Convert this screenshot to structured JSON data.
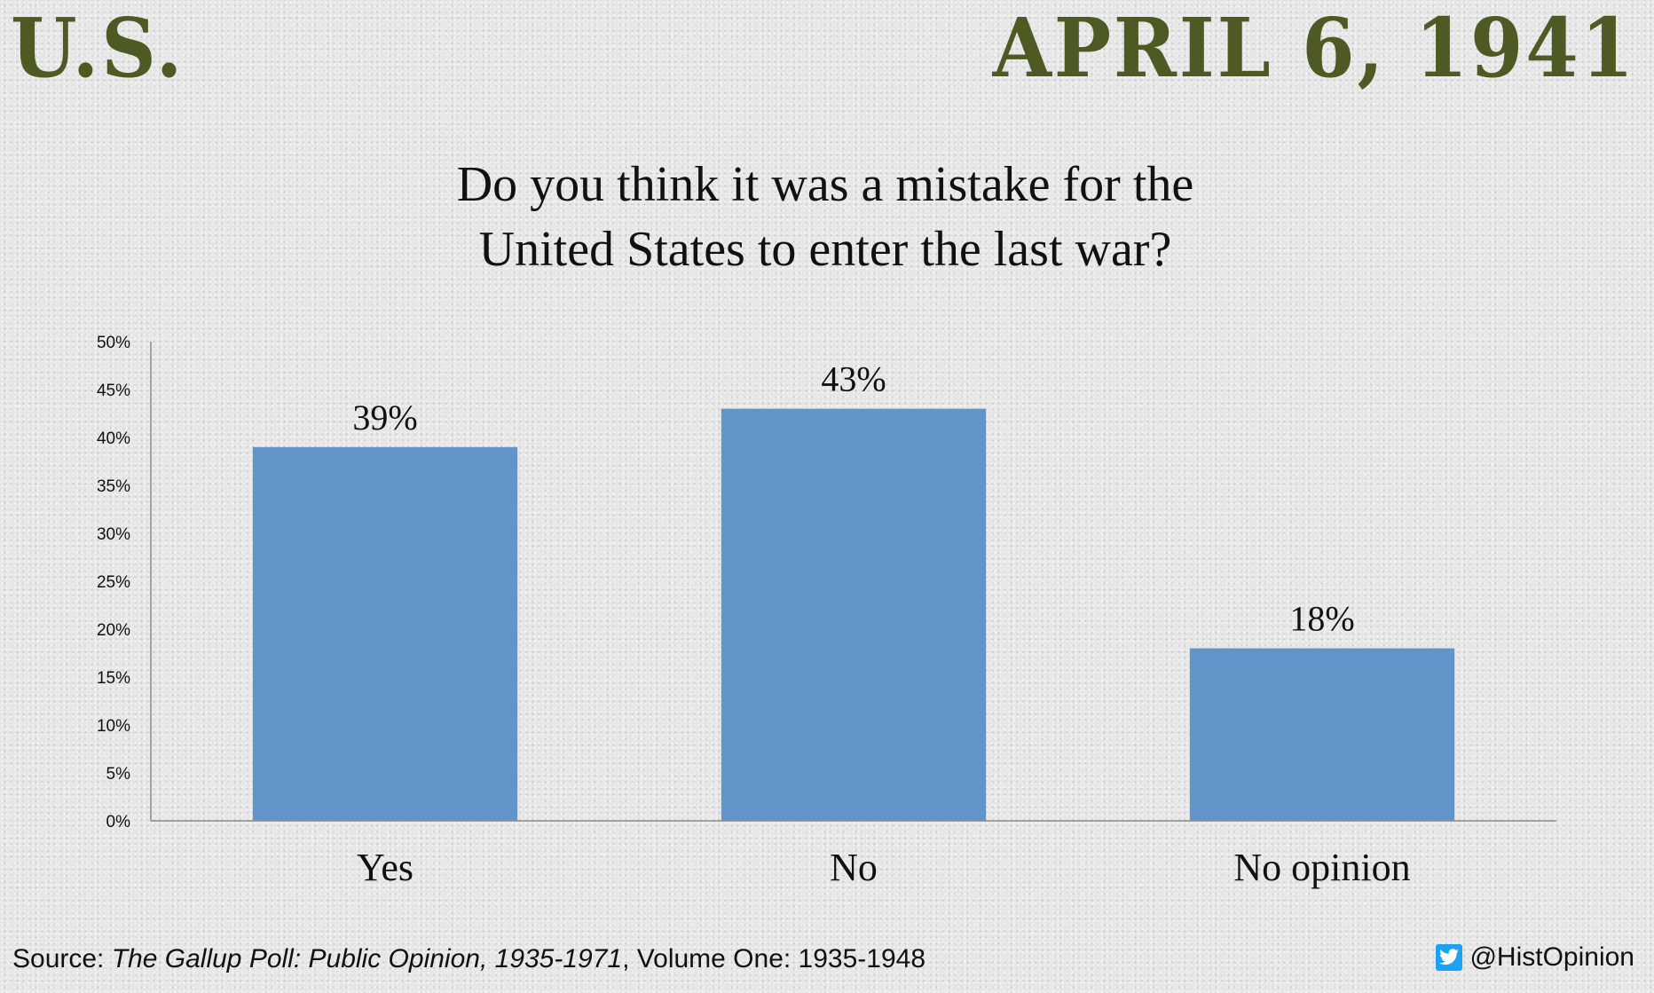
{
  "header": {
    "country": "U.S.",
    "date": "APRIL 6, 1941"
  },
  "colors": {
    "header_text": "#4e5a24",
    "bar": "#6194c8",
    "axis": "#8c8c8c"
  },
  "chart_data": {
    "type": "bar",
    "title_line1": "Do you think it was a mistake for the",
    "title_line2": "United States to enter the last war?",
    "categories": [
      "Yes",
      "No",
      "No opinion"
    ],
    "values": [
      39,
      43,
      18
    ],
    "data_labels": [
      "39%",
      "43%",
      "18%"
    ],
    "ylim": [
      0,
      50
    ],
    "yticks": [
      "0%",
      "5%",
      "10%",
      "15%",
      "20%",
      "25%",
      "30%",
      "35%",
      "40%",
      "45%",
      "50%"
    ],
    "xlabel": "",
    "ylabel": "",
    "grid": false,
    "legend": "none"
  },
  "footer": {
    "source_prefix": "Source: ",
    "source_title": "The Gallup Poll: Public Opinion, 1935-1971",
    "source_suffix": ", Volume One: 1935-1948",
    "handle": "@HistOpinion",
    "handle_icon": "twitter-icon"
  }
}
